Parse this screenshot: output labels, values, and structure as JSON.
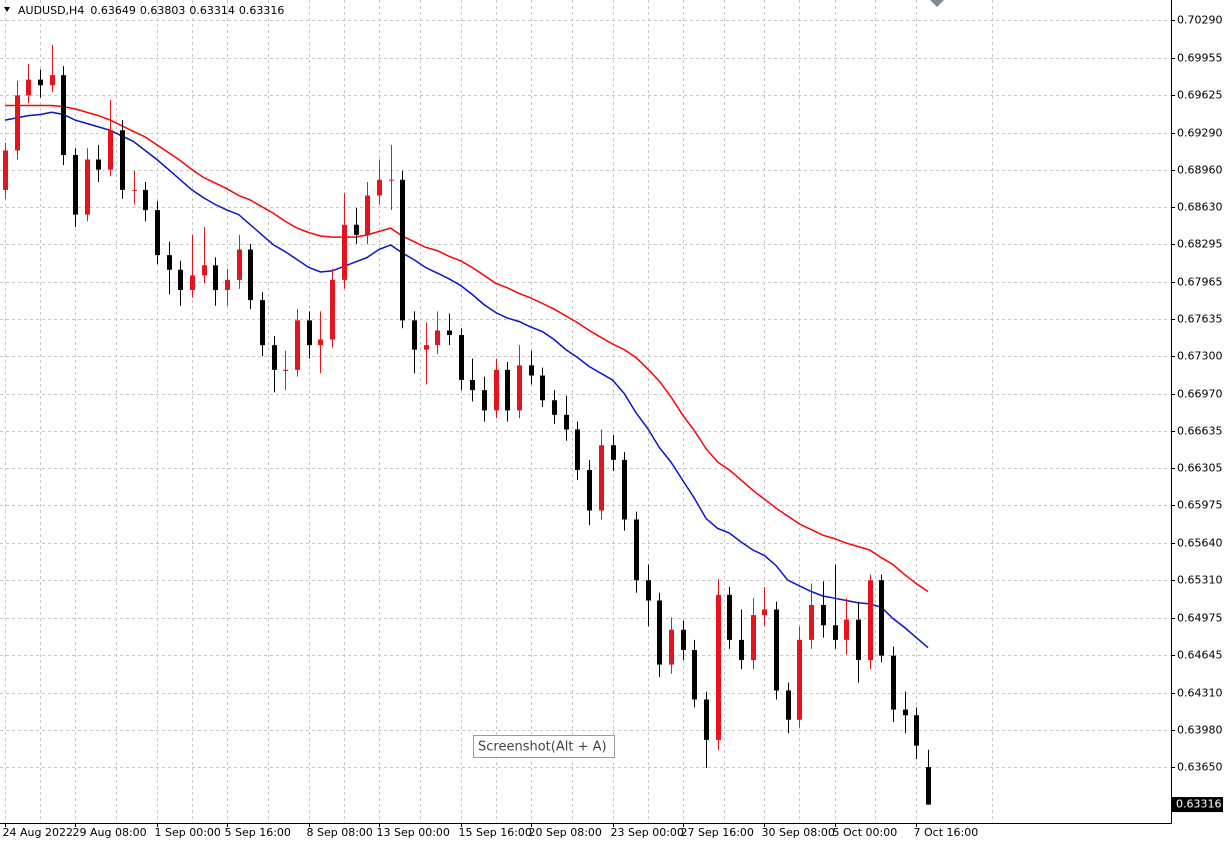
{
  "chart_data": {
    "type": "candlestick",
    "title": "AUDUSD,H4",
    "annotation": "Screenshot(Alt + A)",
    "up_color": "#e4141c",
    "down_color": "#000000",
    "grid": true,
    "ylim": [
      0.63152,
      0.70468
    ],
    "yticks": [
      {
        "value": 0.7029,
        "label": "0.70290"
      },
      0.69955,
      0.69625,
      {
        "value": 0.6929,
        "label": "0.69290"
      },
      {
        "value": 0.6896,
        "label": "0.68960"
      },
      {
        "value": 0.6863,
        "label": "0.68630"
      },
      0.68295,
      0.67965,
      0.67635,
      {
        "value": 0.673,
        "label": "0.67300"
      },
      {
        "value": 0.6697,
        "label": "0.66970"
      },
      0.66635,
      0.66305,
      0.65975,
      {
        "value": 0.6564,
        "label": "0.65640"
      },
      {
        "value": 0.6531,
        "label": "0.65310"
      },
      0.64975,
      0.64645,
      {
        "value": 0.6431,
        "label": "0.64310"
      },
      {
        "value": 0.6398,
        "label": "0.63980"
      },
      {
        "value": 0.6365,
        "label": "0.63650"
      }
    ],
    "categories": [
      "24 Aug 2022",
      null,
      null,
      null,
      null,
      null,
      "29 Aug 08:00",
      null,
      null,
      null,
      null,
      null,
      null,
      "1 Sep 00:00",
      null,
      null,
      null,
      null,
      null,
      "5 Sep 16:00",
      null,
      null,
      null,
      null,
      null,
      null,
      "8 Sep 08:00",
      null,
      null,
      null,
      null,
      null,
      "13 Sep 00:00",
      null,
      null,
      null,
      null,
      null,
      null,
      "15 Sep 16:00",
      null,
      null,
      null,
      null,
      null,
      "20 Sep 08:00",
      null,
      null,
      null,
      null,
      null,
      null,
      "23 Sep 00:00",
      null,
      null,
      null,
      null,
      null,
      "27 Sep 16:00",
      null,
      null,
      null,
      null,
      null,
      null,
      "30 Sep 08:00",
      null,
      null,
      null,
      null,
      null,
      "5 Oct 00:00",
      null,
      null,
      null,
      null,
      null,
      null,
      "7 Oct 16:00",
      null
    ],
    "ohlc": [
      [
        0.6878,
        0.692,
        0.687,
        0.6913
      ],
      [
        0.6913,
        0.6975,
        0.6905,
        0.6962
      ],
      [
        0.6962,
        0.699,
        0.6955,
        0.6976
      ],
      [
        0.6976,
        0.6985,
        0.696,
        0.6971
      ],
      [
        0.6971,
        0.7007,
        0.6965,
        0.698
      ],
      [
        0.698,
        0.6988,
        0.69,
        0.6909
      ],
      [
        0.6909,
        0.6915,
        0.6845,
        0.6856
      ],
      [
        0.6856,
        0.6915,
        0.685,
        0.6905
      ],
      [
        0.6905,
        0.6918,
        0.6885,
        0.6896
      ],
      [
        0.6896,
        0.6958,
        0.689,
        0.6931
      ],
      [
        0.6931,
        0.694,
        0.687,
        0.6878
      ],
      [
        0.6878,
        0.6895,
        0.6865,
        0.6878
      ],
      [
        0.6878,
        0.6885,
        0.685,
        0.686
      ],
      [
        0.686,
        0.6868,
        0.6812,
        0.682
      ],
      [
        0.682,
        0.6832,
        0.6785,
        0.6807
      ],
      [
        0.6807,
        0.6815,
        0.6775,
        0.6789
      ],
      [
        0.6789,
        0.6838,
        0.6782,
        0.6802
      ],
      [
        0.6802,
        0.6845,
        0.6795,
        0.6811
      ],
      [
        0.6811,
        0.6818,
        0.6775,
        0.6789
      ],
      [
        0.6789,
        0.6808,
        0.6775,
        0.6798
      ],
      [
        0.6798,
        0.6838,
        0.679,
        0.6825
      ],
      [
        0.6825,
        0.683,
        0.6772,
        0.678
      ],
      [
        0.678,
        0.6787,
        0.673,
        0.674
      ],
      [
        0.674,
        0.6748,
        0.6698,
        0.6718
      ],
      [
        0.6718,
        0.6735,
        0.67,
        0.6718
      ],
      [
        0.6718,
        0.6772,
        0.6712,
        0.6762
      ],
      [
        0.6762,
        0.677,
        0.6728,
        0.674
      ],
      [
        0.674,
        0.677,
        0.6715,
        0.6745
      ],
      [
        0.6745,
        0.6808,
        0.6738,
        0.6798
      ],
      [
        0.6798,
        0.6875,
        0.679,
        0.6847
      ],
      [
        0.6847,
        0.6862,
        0.683,
        0.6838
      ],
      [
        0.6838,
        0.6885,
        0.683,
        0.6873
      ],
      [
        0.6873,
        0.6905,
        0.6865,
        0.6887
      ],
      [
        0.6887,
        0.6918,
        0.686,
        0.6887
      ],
      [
        0.6887,
        0.6895,
        0.6755,
        0.6762
      ],
      [
        0.6762,
        0.677,
        0.6715,
        0.6736
      ],
      [
        0.6736,
        0.676,
        0.6705,
        0.674
      ],
      [
        0.674,
        0.677,
        0.6732,
        0.6753
      ],
      [
        0.6753,
        0.6768,
        0.674,
        0.6749
      ],
      [
        0.6749,
        0.6755,
        0.67,
        0.6709
      ],
      [
        0.6709,
        0.6728,
        0.669,
        0.67
      ],
      [
        0.67,
        0.6712,
        0.6672,
        0.6682
      ],
      [
        0.6682,
        0.6728,
        0.6675,
        0.6718
      ],
      [
        0.6718,
        0.6725,
        0.6672,
        0.6682
      ],
      [
        0.6682,
        0.674,
        0.6675,
        0.6722
      ],
      [
        0.6722,
        0.6735,
        0.6705,
        0.6713
      ],
      [
        0.6713,
        0.672,
        0.6685,
        0.6691
      ],
      [
        0.6691,
        0.67,
        0.667,
        0.6678
      ],
      [
        0.6678,
        0.6695,
        0.6655,
        0.6665
      ],
      [
        0.6665,
        0.6672,
        0.662,
        0.6629
      ],
      [
        0.6629,
        0.6638,
        0.658,
        0.6593
      ],
      [
        0.6593,
        0.6665,
        0.6585,
        0.6651
      ],
      [
        0.6651,
        0.666,
        0.6628,
        0.6638
      ],
      [
        0.6638,
        0.6645,
        0.6575,
        0.6585
      ],
      [
        0.6585,
        0.6592,
        0.652,
        0.6531
      ],
      [
        0.6531,
        0.6545,
        0.649,
        0.6513
      ],
      [
        0.6513,
        0.652,
        0.6445,
        0.6456
      ],
      [
        0.6456,
        0.6498,
        0.6448,
        0.6487
      ],
      [
        0.6487,
        0.6495,
        0.646,
        0.6469
      ],
      [
        0.6469,
        0.6478,
        0.6418,
        0.6425
      ],
      [
        0.6425,
        0.6432,
        0.6364,
        0.6389
      ],
      [
        0.6389,
        0.6532,
        0.638,
        0.6518
      ],
      [
        0.6518,
        0.6525,
        0.647,
        0.6478
      ],
      [
        0.6478,
        0.6505,
        0.6452,
        0.646
      ],
      [
        0.646,
        0.6515,
        0.6452,
        0.65
      ],
      [
        0.65,
        0.6525,
        0.649,
        0.6505
      ],
      [
        0.6505,
        0.6512,
        0.6425,
        0.6433
      ],
      [
        0.6433,
        0.644,
        0.6395,
        0.6407
      ],
      [
        0.6407,
        0.649,
        0.64,
        0.6478
      ],
      [
        0.6478,
        0.6528,
        0.647,
        0.6509
      ],
      [
        0.6509,
        0.653,
        0.648,
        0.6491
      ],
      [
        0.6491,
        0.6545,
        0.647,
        0.6478
      ],
      [
        0.6478,
        0.6515,
        0.6465,
        0.6496
      ],
      [
        0.6496,
        0.6512,
        0.644,
        0.646
      ],
      [
        0.646,
        0.6536,
        0.6452,
        0.6531
      ],
      [
        0.6531,
        0.6536,
        0.6458,
        0.6464
      ],
      [
        0.6464,
        0.6472,
        0.6405,
        0.6416
      ],
      [
        0.6416,
        0.6432,
        0.6395,
        0.6411
      ],
      [
        0.6411,
        0.6418,
        0.6372,
        0.6384
      ],
      [
        0.63649,
        0.63803,
        0.63314,
        0.63316
      ]
    ],
    "moving_averages": [
      {
        "color": "#ff0000",
        "values": [
          0.6953,
          0.6953,
          0.6953,
          0.6953,
          0.6953,
          0.6952,
          0.695,
          0.6947,
          0.6944,
          0.694,
          0.6935,
          0.693,
          0.6925,
          0.6918,
          0.6911,
          0.6904,
          0.6896,
          0.6889,
          0.6884,
          0.6879,
          0.6873,
          0.6869,
          0.6863,
          0.6857,
          0.685,
          0.6844,
          0.684,
          0.6837,
          0.6836,
          0.6836,
          0.6836,
          0.6838,
          0.6841,
          0.6844,
          0.6837,
          0.6832,
          0.6827,
          0.6824,
          0.6819,
          0.6815,
          0.6809,
          0.6802,
          0.6795,
          0.6791,
          0.6786,
          0.6782,
          0.6777,
          0.6772,
          0.6766,
          0.676,
          0.6753,
          0.6747,
          0.6741,
          0.6736,
          0.6729,
          0.6719,
          0.6708,
          0.6694,
          0.6678,
          0.6664,
          0.6648,
          0.6636,
          0.6629,
          0.662,
          0.6611,
          0.6603,
          0.6595,
          0.6588,
          0.6581,
          0.6576,
          0.6571,
          0.6568,
          0.6564,
          0.6561,
          0.6558,
          0.6551,
          0.6545,
          0.6536,
          0.6528,
          0.6521
        ]
      },
      {
        "color": "#0a14c8",
        "values": [
          0.694,
          0.6942,
          0.6944,
          0.6945,
          0.6947,
          0.6945,
          0.694,
          0.6937,
          0.6934,
          0.6931,
          0.6926,
          0.6921,
          0.6913,
          0.6905,
          0.6896,
          0.6887,
          0.6878,
          0.6871,
          0.6865,
          0.686,
          0.6856,
          0.6847,
          0.6838,
          0.6829,
          0.6823,
          0.6816,
          0.6809,
          0.6805,
          0.6806,
          0.681,
          0.6814,
          0.6818,
          0.6825,
          0.6829,
          0.6822,
          0.6816,
          0.6809,
          0.6804,
          0.6799,
          0.6793,
          0.6785,
          0.6776,
          0.6769,
          0.6764,
          0.6761,
          0.6756,
          0.6752,
          0.6745,
          0.6736,
          0.6729,
          0.6721,
          0.6715,
          0.6709,
          0.6697,
          0.668,
          0.6666,
          0.6649,
          0.6636,
          0.662,
          0.6604,
          0.6586,
          0.6577,
          0.6573,
          0.6565,
          0.6558,
          0.6553,
          0.6544,
          0.6531,
          0.6526,
          0.6521,
          0.6517,
          0.6515,
          0.6513,
          0.6511,
          0.651,
          0.6507,
          0.6497,
          0.6489,
          0.648,
          0.6471
        ]
      }
    ]
  }
}
